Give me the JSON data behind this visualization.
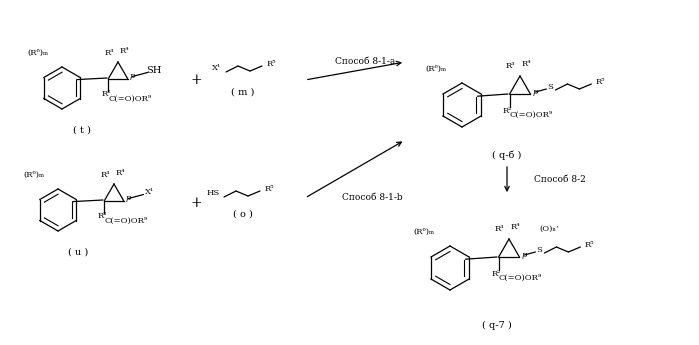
{
  "background_color": "#ffffff",
  "figsize": [
    6.99,
    3.45
  ],
  "dpi": 100,
  "method_a": "Способ 8-1-a",
  "method_b": "Способ 8-1-b",
  "method_2": "Способ 8-2",
  "r6m": "(R⁶)ₘ",
  "r3": "R³",
  "r4": "R⁴",
  "r5": "R⁵",
  "r2": "R²",
  "r9": "C(=O)OR⁹",
  "x1": "X¹",
  "p": "p",
  "sh": "SH",
  "hs": "HS",
  "s": "S",
  "on": "(O)ₙ’",
  "t": "( t )",
  "u": "( u )",
  "m": "( m )",
  "o": "( o )",
  "q6": "( q-б )",
  "q7": "( q-7 )"
}
